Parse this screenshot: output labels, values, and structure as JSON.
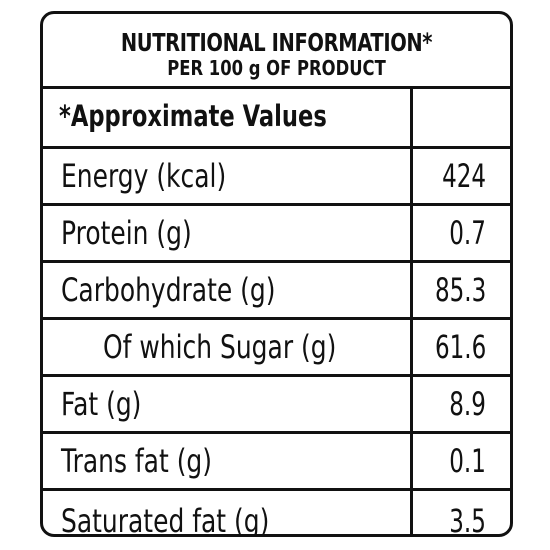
{
  "header": {
    "title": "NUTRITIONAL INFORMATION*",
    "subtitle": "PER 100 g OF PRODUCT"
  },
  "table": {
    "header_row": {
      "label": "*Approximate Values",
      "value": ""
    },
    "rows": [
      {
        "label": "Energy (kcal)",
        "value": "424"
      },
      {
        "label": "Protein (g)",
        "value": "0.7"
      },
      {
        "label": "Carbohydrate (g)",
        "value": "85.3"
      },
      {
        "label": "Of which Sugar (g)",
        "value": "61.6"
      },
      {
        "label": "Fat (g)",
        "value": "8.9"
      },
      {
        "label": "Trans fat (g)",
        "value": "0.1"
      },
      {
        "label": "Saturated fat (g)",
        "value": "3.5"
      }
    ]
  }
}
